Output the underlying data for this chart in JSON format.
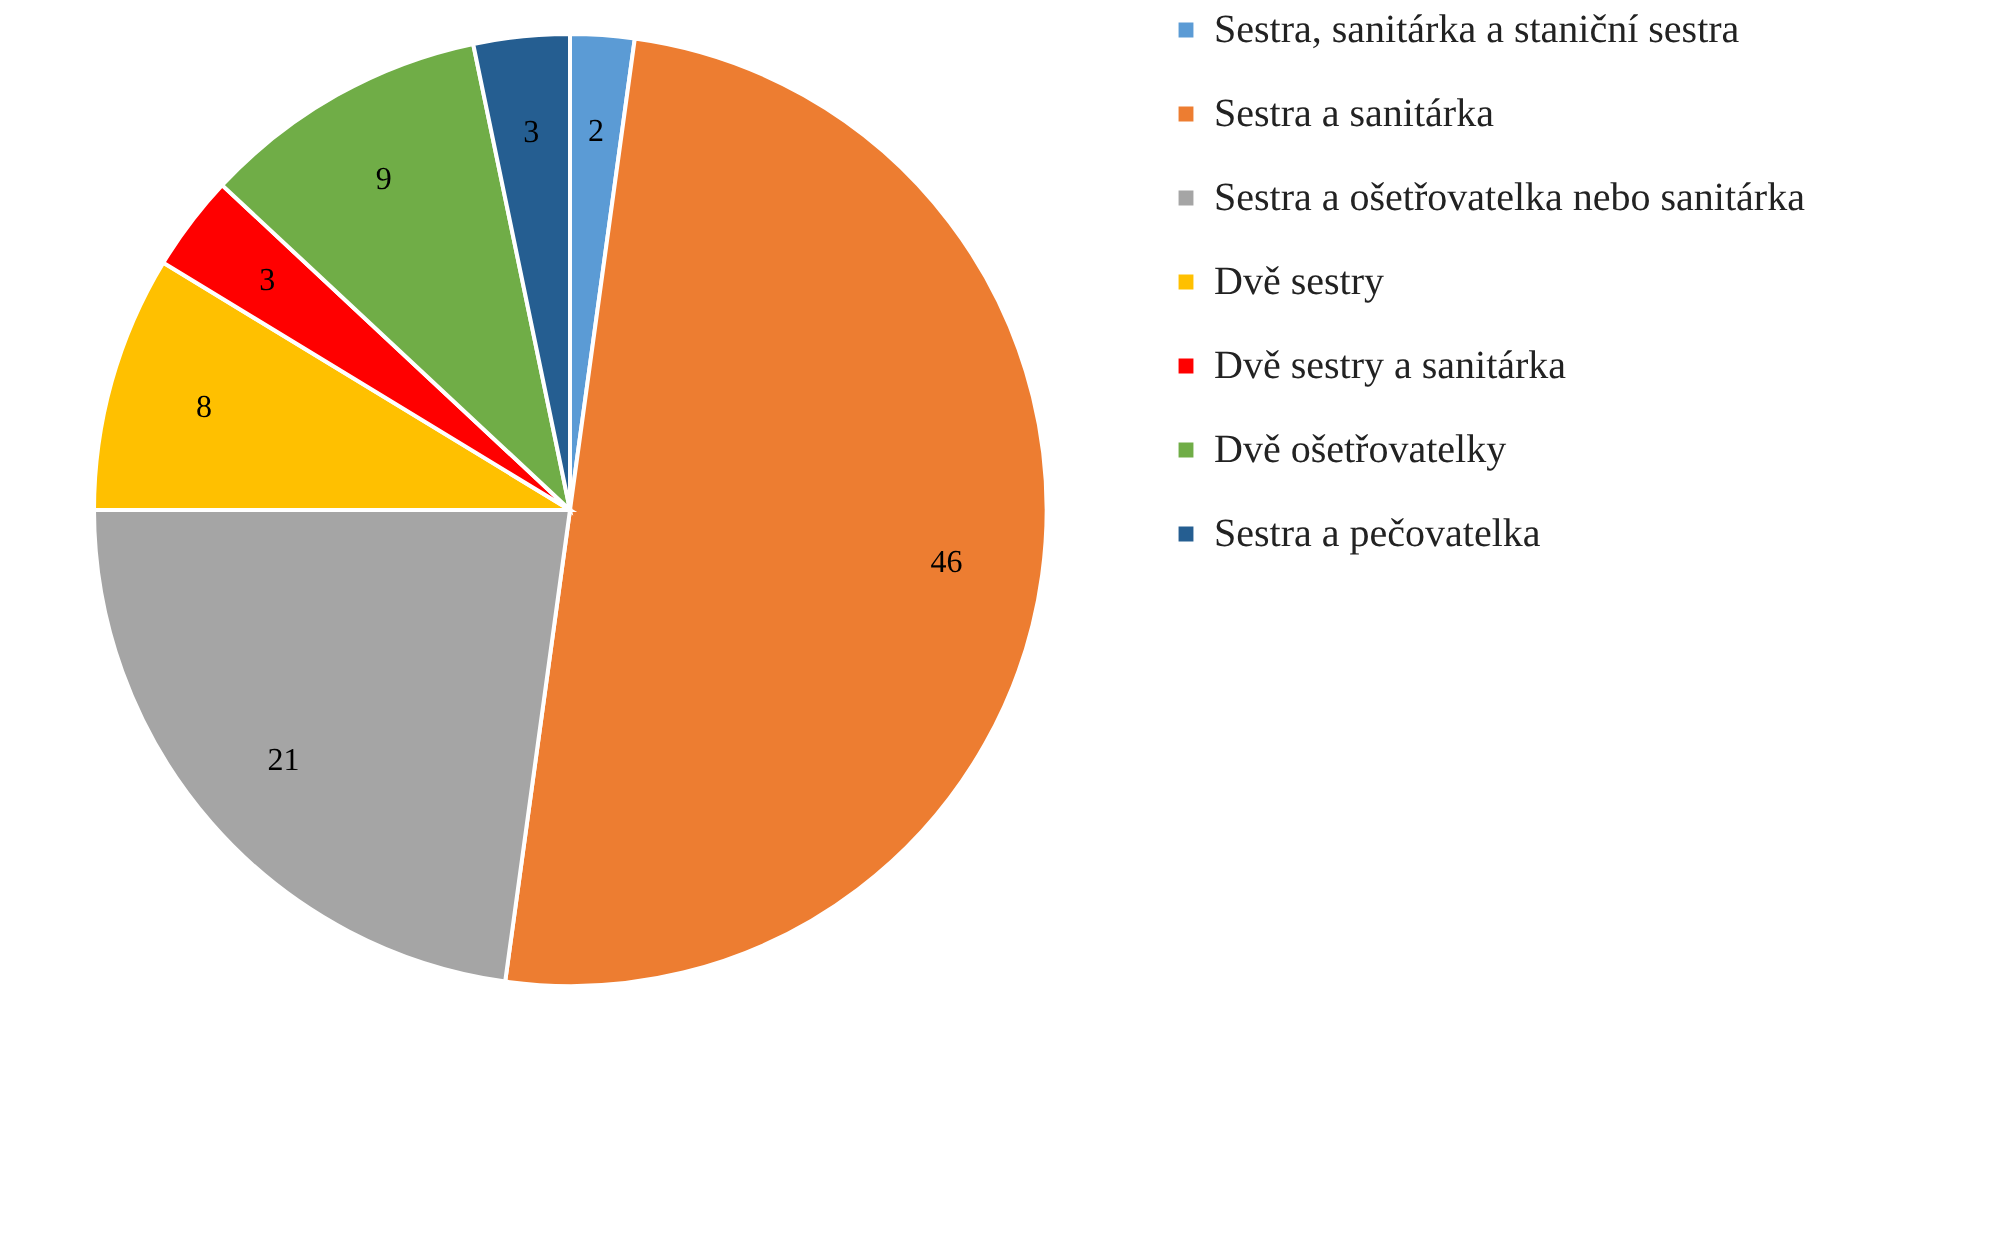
{
  "chart_data": {
    "type": "pie",
    "categories": [
      "Sestra, sanitárka a staniční sestra",
      "Sestra a sanitárka",
      "Sestra a ošetřovatelka nebo sanitárka",
      "Dvě sestry",
      "Dvě sestry a sanitárka",
      "Dvě ošetřovatelky",
      "Sestra a pečovatelka"
    ],
    "values": [
      2,
      46,
      21,
      8,
      3,
      9,
      3
    ],
    "colors": [
      "#5b9bd5",
      "#ed7d31",
      "#a5a5a5",
      "#ffc000",
      "#ff0000",
      "#70ad47",
      "#255e91"
    ],
    "data_labels": true,
    "legend": "right"
  }
}
